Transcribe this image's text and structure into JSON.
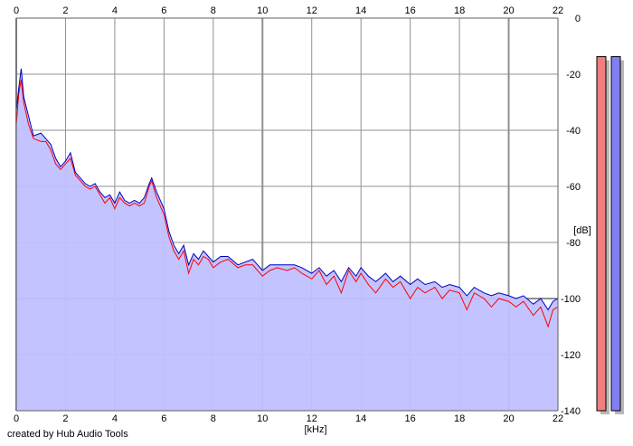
{
  "chart_data": {
    "type": "area",
    "x_axis": {
      "label": "[kHz]",
      "min": 0,
      "max": 22,
      "ticks": [
        0,
        2,
        4,
        6,
        8,
        10,
        12,
        14,
        16,
        18,
        20,
        22
      ]
    },
    "y_axis": {
      "label": "[dB]",
      "min": -140,
      "max": 0,
      "ticks": [
        0,
        -20,
        -40,
        -60,
        -80,
        -100,
        -120,
        -140
      ]
    },
    "grid": true,
    "series": [
      {
        "color": "#ff0000",
        "points": [
          [
            0,
            -38
          ],
          [
            0.1,
            -27
          ],
          [
            0.2,
            -22
          ],
          [
            0.3,
            -30
          ],
          [
            0.5,
            -38
          ],
          [
            0.7,
            -43
          ],
          [
            1,
            -44
          ],
          [
            1.2,
            -44
          ],
          [
            1.4,
            -47
          ],
          [
            1.6,
            -52
          ],
          [
            1.8,
            -54
          ],
          [
            2,
            -52
          ],
          [
            2.2,
            -50
          ],
          [
            2.4,
            -56
          ],
          [
            2.6,
            -58
          ],
          [
            2.8,
            -60
          ],
          [
            3,
            -61
          ],
          [
            3.2,
            -60
          ],
          [
            3.4,
            -63
          ],
          [
            3.6,
            -66
          ],
          [
            3.8,
            -64
          ],
          [
            4,
            -68
          ],
          [
            4.2,
            -64
          ],
          [
            4.4,
            -66
          ],
          [
            4.6,
            -67
          ],
          [
            4.8,
            -66
          ],
          [
            5,
            -67
          ],
          [
            5.2,
            -66
          ],
          [
            5.4,
            -60
          ],
          [
            5.5,
            -58
          ],
          [
            5.7,
            -64
          ],
          [
            6,
            -70
          ],
          [
            6.2,
            -78
          ],
          [
            6.4,
            -83
          ],
          [
            6.6,
            -86
          ],
          [
            6.8,
            -83
          ],
          [
            7,
            -91
          ],
          [
            7.2,
            -86
          ],
          [
            7.4,
            -88
          ],
          [
            7.6,
            -85
          ],
          [
            7.8,
            -86
          ],
          [
            8,
            -89
          ],
          [
            8.3,
            -87
          ],
          [
            8.6,
            -86
          ],
          [
            9,
            -89
          ],
          [
            9.3,
            -88
          ],
          [
            9.6,
            -88
          ],
          [
            10,
            -92
          ],
          [
            10.3,
            -90
          ],
          [
            10.6,
            -89
          ],
          [
            11,
            -90
          ],
          [
            11.3,
            -89
          ],
          [
            11.6,
            -91
          ],
          [
            12,
            -93
          ],
          [
            12.3,
            -90
          ],
          [
            12.6,
            -95
          ],
          [
            12.9,
            -92
          ],
          [
            13.2,
            -98
          ],
          [
            13.5,
            -90
          ],
          [
            13.8,
            -94
          ],
          [
            14,
            -91
          ],
          [
            14.3,
            -95
          ],
          [
            14.6,
            -98
          ],
          [
            15,
            -93
          ],
          [
            15.3,
            -96
          ],
          [
            15.6,
            -94
          ],
          [
            16,
            -100
          ],
          [
            16.3,
            -96
          ],
          [
            16.6,
            -98
          ],
          [
            17,
            -96
          ],
          [
            17.3,
            -100
          ],
          [
            17.6,
            -97
          ],
          [
            18,
            -98
          ],
          [
            18.3,
            -104
          ],
          [
            18.6,
            -98
          ],
          [
            19,
            -100
          ],
          [
            19.3,
            -103
          ],
          [
            19.6,
            -100
          ],
          [
            20,
            -101
          ],
          [
            20.3,
            -103
          ],
          [
            20.6,
            -101
          ],
          [
            21,
            -106
          ],
          [
            21.3,
            -103
          ],
          [
            21.6,
            -110
          ],
          [
            21.8,
            -104
          ],
          [
            22,
            -103
          ]
        ]
      },
      {
        "color": "#0000c0",
        "points": [
          [
            0,
            -33
          ],
          [
            0.1,
            -25
          ],
          [
            0.2,
            -18
          ],
          [
            0.3,
            -28
          ],
          [
            0.5,
            -35
          ],
          [
            0.7,
            -42
          ],
          [
            1,
            -41
          ],
          [
            1.2,
            -43
          ],
          [
            1.4,
            -45
          ],
          [
            1.6,
            -50
          ],
          [
            1.8,
            -53
          ],
          [
            2,
            -51
          ],
          [
            2.2,
            -48
          ],
          [
            2.4,
            -55
          ],
          [
            2.6,
            -57
          ],
          [
            2.8,
            -59
          ],
          [
            3,
            -60
          ],
          [
            3.2,
            -59
          ],
          [
            3.4,
            -62
          ],
          [
            3.6,
            -64
          ],
          [
            3.8,
            -63
          ],
          [
            4,
            -66
          ],
          [
            4.2,
            -62
          ],
          [
            4.4,
            -65
          ],
          [
            4.6,
            -66
          ],
          [
            4.8,
            -65
          ],
          [
            5,
            -66
          ],
          [
            5.2,
            -64
          ],
          [
            5.4,
            -59
          ],
          [
            5.5,
            -57
          ],
          [
            5.7,
            -62
          ],
          [
            6,
            -68
          ],
          [
            6.2,
            -76
          ],
          [
            6.4,
            -81
          ],
          [
            6.6,
            -84
          ],
          [
            6.8,
            -81
          ],
          [
            7,
            -88
          ],
          [
            7.2,
            -84
          ],
          [
            7.4,
            -86
          ],
          [
            7.6,
            -83
          ],
          [
            7.8,
            -85
          ],
          [
            8,
            -87
          ],
          [
            8.3,
            -85
          ],
          [
            8.6,
            -85
          ],
          [
            9,
            -88
          ],
          [
            9.3,
            -87
          ],
          [
            9.6,
            -86
          ],
          [
            10,
            -90
          ],
          [
            10.3,
            -88
          ],
          [
            10.6,
            -88
          ],
          [
            11,
            -88
          ],
          [
            11.3,
            -88
          ],
          [
            11.6,
            -89
          ],
          [
            12,
            -91
          ],
          [
            12.3,
            -89
          ],
          [
            12.6,
            -92
          ],
          [
            12.9,
            -90
          ],
          [
            13.2,
            -94
          ],
          [
            13.5,
            -89
          ],
          [
            13.8,
            -92
          ],
          [
            14,
            -89
          ],
          [
            14.3,
            -92
          ],
          [
            14.6,
            -94
          ],
          [
            15,
            -91
          ],
          [
            15.3,
            -94
          ],
          [
            15.6,
            -92
          ],
          [
            16,
            -95
          ],
          [
            16.3,
            -93
          ],
          [
            16.6,
            -95
          ],
          [
            17,
            -94
          ],
          [
            17.3,
            -96
          ],
          [
            17.6,
            -95
          ],
          [
            18,
            -96
          ],
          [
            18.3,
            -99
          ],
          [
            18.6,
            -96
          ],
          [
            19,
            -98
          ],
          [
            19.3,
            -99
          ],
          [
            19.6,
            -98
          ],
          [
            20,
            -99
          ],
          [
            20.3,
            -100
          ],
          [
            20.6,
            -99
          ],
          [
            21,
            -102
          ],
          [
            21.3,
            -100
          ],
          [
            21.6,
            -104
          ],
          [
            21.8,
            -101
          ],
          [
            22,
            -100
          ]
        ]
      }
    ],
    "fill_color": "#c0c0ff",
    "level_meters": [
      {
        "color": "#f08080",
        "level": 0.95
      },
      {
        "color": "#8080f0",
        "level": 0.95
      }
    ]
  },
  "footer": {
    "credit": "created by Hub Audio Tools"
  }
}
